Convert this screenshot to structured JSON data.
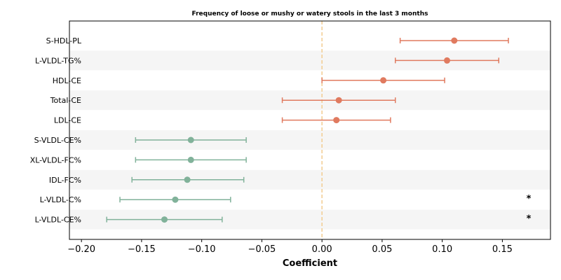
{
  "colors": {
    "positive": "#e07a5f",
    "negative": "#81b29a",
    "zero_line": "#f2cc8f",
    "stripe": "#f5f5f5",
    "axis": "#000000"
  },
  "chart_data": {
    "type": "forest",
    "title": "Frequency of loose or mushy or watery stools in the last 3 months",
    "xlabel": "Coefficient",
    "ylabel": "",
    "xlim": [
      -0.21,
      0.19
    ],
    "xticks": [
      -0.2,
      -0.15,
      -0.1,
      -0.05,
      0.0,
      0.05,
      0.1,
      0.15
    ],
    "xtick_labels": [
      "−0.20",
      "−0.15",
      "−0.10",
      "−0.05",
      "0.00",
      "0.05",
      "0.10",
      "0.15"
    ],
    "reference_line": 0.0,
    "rows": [
      {
        "label": "S-HDL-PL",
        "coef": 0.11,
        "ci_low": 0.065,
        "ci_high": 0.155,
        "significant": false
      },
      {
        "label": "L-VLDL-TG%",
        "coef": 0.104,
        "ci_low": 0.061,
        "ci_high": 0.147,
        "significant": false
      },
      {
        "label": "HDL-CE",
        "coef": 0.051,
        "ci_low": 0.0,
        "ci_high": 0.102,
        "significant": false
      },
      {
        "label": "Total-CE",
        "coef": 0.014,
        "ci_low": -0.033,
        "ci_high": 0.061,
        "significant": false
      },
      {
        "label": "LDL-CE",
        "coef": 0.012,
        "ci_low": -0.033,
        "ci_high": 0.057,
        "significant": false
      },
      {
        "label": "S-VLDL-CE%",
        "coef": -0.109,
        "ci_low": -0.155,
        "ci_high": -0.063,
        "significant": false
      },
      {
        "label": "XL-VLDL-FC%",
        "coef": -0.109,
        "ci_low": -0.155,
        "ci_high": -0.063,
        "significant": false
      },
      {
        "label": "IDL-FC%",
        "coef": -0.112,
        "ci_low": -0.158,
        "ci_high": -0.065,
        "significant": false
      },
      {
        "label": "L-VLDL-C%",
        "coef": -0.122,
        "ci_low": -0.168,
        "ci_high": -0.076,
        "significant": true
      },
      {
        "label": "L-VLDL-CE%",
        "coef": -0.131,
        "ci_low": -0.179,
        "ci_high": -0.083,
        "significant": true
      }
    ],
    "significance_marker": "*"
  }
}
